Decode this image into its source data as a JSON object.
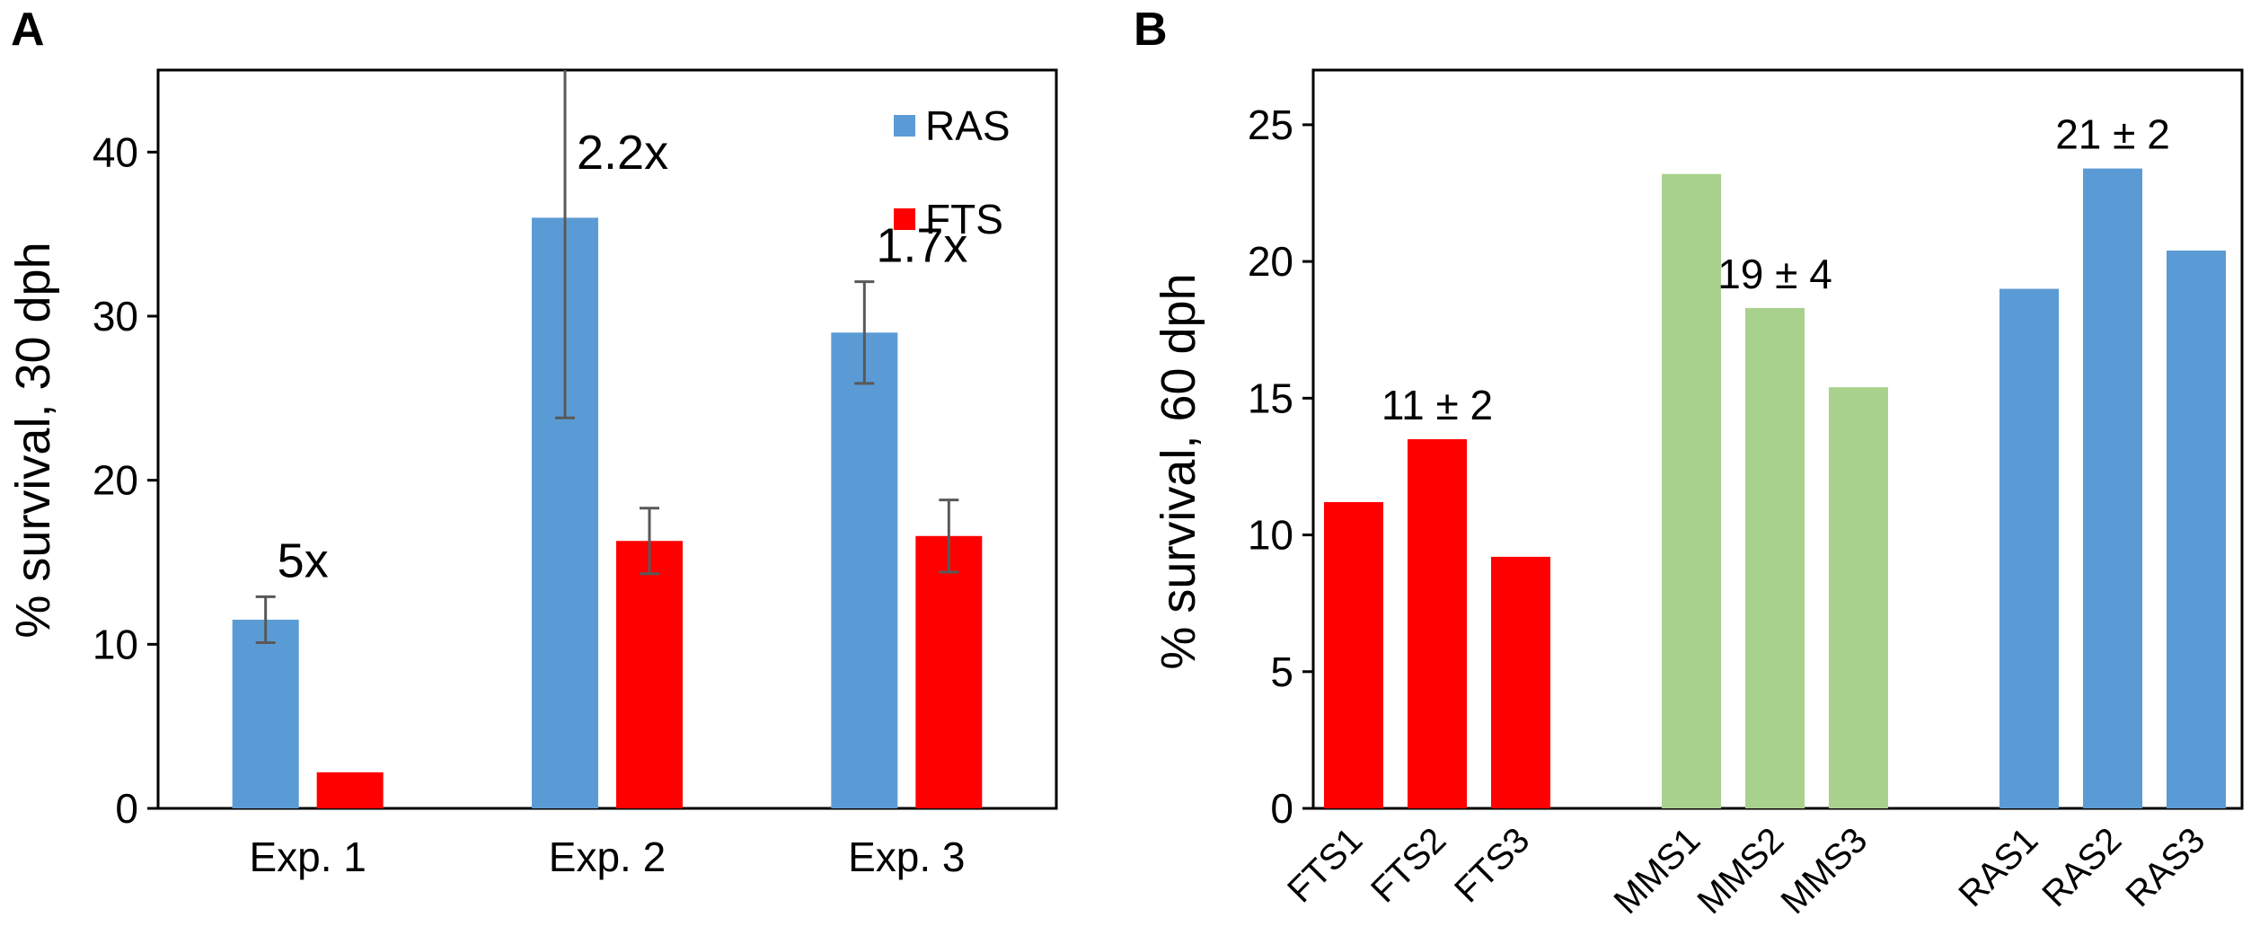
{
  "chart_data": [
    {
      "panel": "A",
      "type": "bar",
      "ylabel": "% survival,  30 dph",
      "ylim": [
        0,
        45
      ],
      "yticks": [
        0,
        10,
        20,
        30,
        40
      ],
      "categories": [
        "Exp. 1",
        "Exp. 2",
        "Exp. 3"
      ],
      "legend_position": "top-right",
      "series": [
        {
          "name": "RAS",
          "color": "#5B9BD5",
          "values": [
            11.5,
            36,
            29
          ],
          "errors": [
            1.4,
            12.2,
            3.1
          ]
        },
        {
          "name": "FTS",
          "color": "#FF0000",
          "values": [
            2.2,
            16.3,
            16.6
          ],
          "errors": [
            0,
            2,
            2.2
          ]
        }
      ],
      "annotations": [
        "5x",
        "2.2x",
        "1.7x"
      ]
    },
    {
      "panel": "B",
      "type": "bar",
      "ylabel": "% survival,  60 dph",
      "ylim": [
        0,
        27
      ],
      "yticks": [
        0,
        5,
        10,
        15,
        20,
        25
      ],
      "groups": [
        {
          "name": "FTS",
          "color": "#FF0000",
          "categories": [
            "FTS1",
            "FTS2",
            "FTS3"
          ],
          "values": [
            11.2,
            13.5,
            9.2
          ],
          "annotation": "11 ± 2"
        },
        {
          "name": "MMS",
          "color": "#A9D18E",
          "categories": [
            "MMS1",
            "MMS2",
            "MMS3"
          ],
          "values": [
            23.2,
            18.3,
            15.4
          ],
          "annotation": "19 ± 4"
        },
        {
          "name": "RAS",
          "color": "#5B9BD5",
          "categories": [
            "RAS1",
            "RAS2",
            "RAS3"
          ],
          "values": [
            19.0,
            23.4,
            20.4
          ],
          "annotation": "21 ± 2"
        }
      ]
    }
  ]
}
